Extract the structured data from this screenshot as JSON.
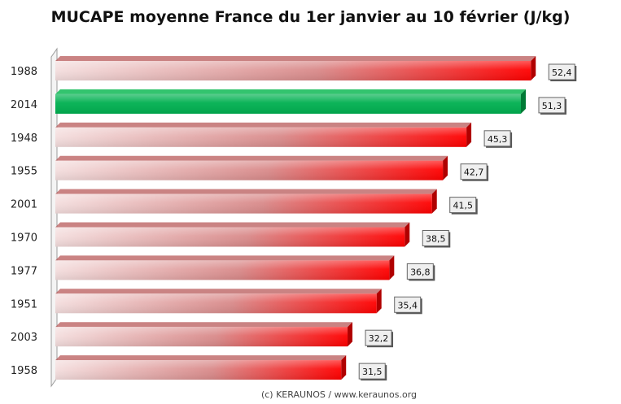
{
  "chart_data": {
    "type": "bar",
    "orientation": "horizontal",
    "title": "MUCAPE moyenne France du 1er janvier au 10 février (J/kg)",
    "categories": [
      "1988",
      "2014",
      "1948",
      "1955",
      "2001",
      "1970",
      "1977",
      "1951",
      "2003",
      "1958"
    ],
    "values": [
      52.4,
      51.3,
      45.3,
      42.7,
      41.5,
      38.5,
      36.8,
      35.4,
      32.2,
      31.5
    ],
    "value_labels": [
      "52,4",
      "51,3",
      "45,3",
      "42,7",
      "41,5",
      "38,5",
      "36,8",
      "35,4",
      "32,2",
      "31,5"
    ],
    "highlight_category": "2014",
    "xlim": [
      0,
      60
    ],
    "grid": false,
    "legend": "none",
    "colors": {
      "bar_gradient_start": "#f4dede",
      "bar_gradient_mid": "#d98a8a",
      "bar_gradient_end": "#ff0000",
      "bar_top": "#b85a5a",
      "bar_side": "#b00000",
      "highlight": "#00b050",
      "highlight_side": "#007a35"
    }
  },
  "credit": "(c) KERAUNOS / www.keraunos.org"
}
